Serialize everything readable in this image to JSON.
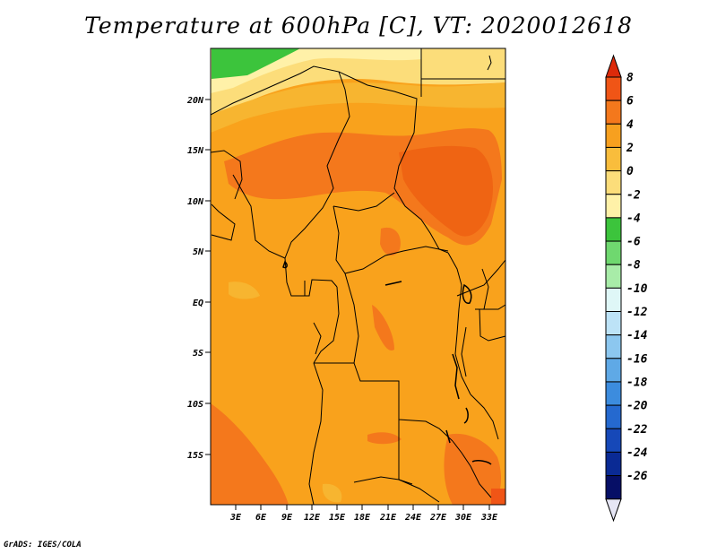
{
  "title": "Temperature at 600hPa [C], VT: 2020012618",
  "credit": "GrADS: IGES/COLA",
  "map": {
    "variable": "Temperature",
    "level": "600hPa",
    "units": "C",
    "valid_time": "2020012618",
    "lat_labels": [
      "20N",
      "15N",
      "10N",
      "5N",
      "EQ",
      "5S",
      "10S",
      "15S"
    ],
    "lon_labels": [
      "3E",
      "6E",
      "9E",
      "12E",
      "15E",
      "18E",
      "21E",
      "24E",
      "27E",
      "30E",
      "33E"
    ]
  },
  "colorbar": {
    "levels": [
      "8",
      "6",
      "4",
      "2",
      "0",
      "-2",
      "-4",
      "-6",
      "-8",
      "-10",
      "-12",
      "-14",
      "-16",
      "-18",
      "-20",
      "-22",
      "-24",
      "-26"
    ],
    "colors": [
      "#dd2a0a",
      "#f05516",
      "#f4781c",
      "#f7a01f",
      "#f9bd3c",
      "#fcdd7a",
      "#fff1a8",
      "#3cc43c",
      "#6fd86f",
      "#a8eca8",
      "#dff7f7",
      "#bde3f7",
      "#8cc7ef",
      "#5fa9e6",
      "#3c8cde",
      "#2569cf",
      "#1648b8",
      "#0a2a94",
      "#060f66",
      "#e6e6f5"
    ]
  },
  "colors": {
    "warm_field": "#f9a21c",
    "hot_field": "#f4781c",
    "hotter_field": "#f05516",
    "cool_field": "#fcdd7a",
    "cold_field": "#3cc43c"
  }
}
